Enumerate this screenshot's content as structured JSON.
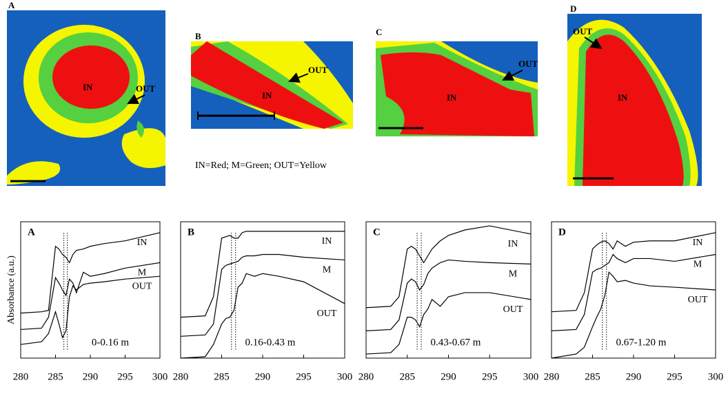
{
  "images": [
    {
      "label": "A",
      "in": "IN",
      "out": "OUT"
    },
    {
      "label": "B",
      "in": "IN",
      "out": "OUT"
    },
    {
      "label": "C",
      "in": "IN",
      "out": "OUT"
    },
    {
      "label": "D",
      "in": "IN",
      "out": "OUT"
    }
  ],
  "legend_text": "IN=Red; M=Green; OUT=Yellow",
  "chart_data": [
    {
      "type": "line",
      "title": "A",
      "annotation": "0-0.16 m",
      "y_label": "Absorbance (a.u.)",
      "x": [
        280,
        283,
        284,
        285,
        285.5,
        286,
        286.5,
        287,
        287.5,
        288,
        289,
        290,
        292,
        295,
        300
      ],
      "series": [
        {
          "name": "IN",
          "color": "#000",
          "values": [
            3.3,
            3.4,
            3.5,
            8.2,
            8.0,
            7.6,
            7.4,
            7.0,
            7.6,
            7.9,
            8.0,
            8.2,
            8.4,
            8.6,
            9.2
          ]
        },
        {
          "name": "M",
          "color": "#000",
          "values": [
            2.1,
            2.2,
            3.0,
            5.9,
            5.5,
            5.0,
            4.6,
            5.8,
            5.5,
            4.8,
            6.3,
            6.0,
            6.2,
            6.6,
            7.0
          ]
        },
        {
          "name": "OUT",
          "color": "#000",
          "values": [
            1.0,
            1.2,
            1.8,
            3.4,
            2.5,
            1.5,
            2.0,
            4.5,
            5.3,
            5.0,
            5.4,
            5.5,
            5.6,
            5.8,
            6.0
          ]
        }
      ],
      "vlines": [
        286.2,
        286.7
      ],
      "xlim": [
        280,
        300
      ],
      "xticks": [
        280,
        285,
        290,
        295,
        300
      ],
      "ylim": [
        0,
        10
      ]
    },
    {
      "type": "line",
      "title": "B",
      "annotation": "0.16-0.43 m",
      "x": [
        280,
        283,
        284,
        285,
        285.5,
        286,
        286.5,
        287,
        287.5,
        288,
        289,
        290,
        292,
        295,
        300
      ],
      "series": [
        {
          "name": "IN",
          "color": "#000",
          "values": [
            3.0,
            3.1,
            4.5,
            8.8,
            8.9,
            9.0,
            8.8,
            8.8,
            9.2,
            9.3,
            9.3,
            9.3,
            9.3,
            9.3,
            9.3
          ]
        },
        {
          "name": "M",
          "color": "#000",
          "values": [
            1.6,
            1.7,
            2.5,
            6.5,
            6.8,
            6.9,
            7.0,
            7.1,
            7.4,
            7.5,
            7.5,
            7.6,
            7.6,
            7.4,
            7.2
          ]
        },
        {
          "name": "OUT",
          "color": "#000",
          "values": [
            0.0,
            0.1,
            1.0,
            2.5,
            2.9,
            3.0,
            3.5,
            5.2,
            5.5,
            6.2,
            6.0,
            6.2,
            6.0,
            5.6,
            4.0
          ]
        }
      ],
      "vlines": [
        286.2,
        286.7
      ],
      "xlim": [
        280,
        300
      ],
      "xticks": [
        280,
        285,
        290,
        295,
        300
      ],
      "ylim": [
        0,
        10
      ]
    },
    {
      "type": "line",
      "title": "C",
      "annotation": "0.43-0.67 m",
      "x": [
        280,
        283,
        284,
        285,
        285.5,
        286,
        286.5,
        287,
        287.5,
        288,
        289,
        290,
        292,
        295,
        300
      ],
      "series": [
        {
          "name": "IN",
          "color": "#000",
          "values": [
            3.7,
            3.8,
            4.5,
            8.0,
            8.2,
            8.0,
            7.5,
            7.0,
            7.5,
            8.0,
            8.6,
            9.0,
            9.4,
            9.7,
            9.1
          ]
        },
        {
          "name": "M",
          "color": "#000",
          "values": [
            2.0,
            2.1,
            2.8,
            5.5,
            5.8,
            5.6,
            5.0,
            5.4,
            6.2,
            6.6,
            7.0,
            7.2,
            7.1,
            7.0,
            6.9
          ]
        },
        {
          "name": "OUT",
          "color": "#000",
          "values": [
            0.3,
            0.4,
            1.0,
            3.0,
            3.0,
            2.8,
            2.3,
            3.2,
            3.6,
            4.3,
            3.8,
            4.5,
            4.8,
            4.8,
            4.3
          ]
        }
      ],
      "vlines": [
        286.2,
        286.7
      ],
      "xlim": [
        280,
        300
      ],
      "xticks": [
        280,
        285,
        290,
        295,
        300
      ],
      "ylim": [
        0,
        10
      ]
    },
    {
      "type": "line",
      "title": "D",
      "annotation": "0.67-1.20 m",
      "x": [
        280,
        283,
        284,
        285,
        285.5,
        286,
        286.5,
        287,
        287.5,
        288,
        289,
        290,
        292,
        295,
        300
      ],
      "series": [
        {
          "name": "IN",
          "color": "#000",
          "values": [
            3.4,
            3.5,
            4.8,
            8.0,
            8.3,
            8.5,
            8.6,
            8.4,
            8.0,
            8.6,
            8.2,
            8.5,
            8.6,
            8.6,
            9.2
          ]
        },
        {
          "name": "M",
          "color": "#000",
          "values": [
            2.0,
            2.1,
            3.2,
            6.3,
            6.5,
            6.6,
            6.8,
            7.0,
            7.6,
            7.3,
            7.0,
            7.3,
            7.3,
            7.1,
            7.6
          ]
        },
        {
          "name": "OUT",
          "color": "#000",
          "values": [
            0.0,
            0.3,
            0.8,
            2.3,
            3.0,
            3.6,
            4.6,
            6.3,
            6.0,
            5.6,
            5.7,
            5.5,
            5.3,
            5.2,
            5.0
          ]
        }
      ],
      "vlines": [
        286.2,
        286.7
      ],
      "xlim": [
        280,
        300
      ],
      "xticks": [
        280,
        285,
        290,
        295,
        300
      ],
      "ylim": [
        0,
        10
      ]
    }
  ]
}
